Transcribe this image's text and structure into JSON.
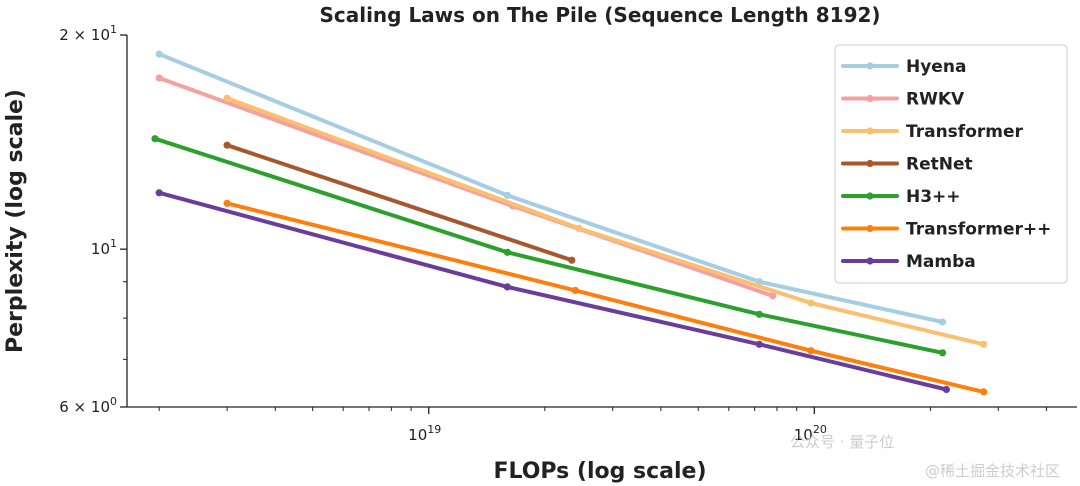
{
  "chart_data": {
    "type": "line",
    "title": "Scaling Laws on The Pile (Sequence Length 8192)",
    "xlabel": "FLOPs (log scale)",
    "ylabel": "Perplexity (log scale)",
    "xscale": "log",
    "yscale": "log",
    "xlim": [
      1.65e+18,
      4.8e+20
    ],
    "ylim": [
      6,
      20
    ],
    "x_ticks": [
      {
        "value": 1e+19,
        "base": "10",
        "exp": "19"
      },
      {
        "value": 1e+20,
        "base": "10",
        "exp": "20"
      }
    ],
    "y_ticks": [
      {
        "value": 6,
        "mant": "6 × 10",
        "exp": "0"
      },
      {
        "value": 10,
        "mant": "10",
        "exp": "1"
      },
      {
        "value": 20,
        "mant": "2 × 10",
        "exp": "1"
      }
    ],
    "grid": false,
    "legend_position": "top-right",
    "series": [
      {
        "name": "Hyena",
        "color": "#a6cee3",
        "points": [
          [
            2e+18,
            18.8
          ],
          [
            1.6e+19,
            11.9
          ],
          [
            7.2e+19,
            9.0
          ],
          [
            2.15e+20,
            7.9
          ]
        ]
      },
      {
        "name": "RWKV",
        "color": "#f4a0a0",
        "points": [
          [
            2e+18,
            17.4
          ],
          [
            1.65e+19,
            11.5
          ],
          [
            7.8e+19,
            8.6
          ]
        ]
      },
      {
        "name": "Transformer",
        "color": "#fbbf70",
        "points": [
          [
            3e+18,
            16.3
          ],
          [
            2.45e+19,
            10.7
          ],
          [
            9.8e+19,
            8.4
          ],
          [
            2.75e+20,
            7.35
          ]
        ]
      },
      {
        "name": "RetNet",
        "color": "#a6582b",
        "points": [
          [
            3e+18,
            14.0
          ],
          [
            2.35e+19,
            9.65
          ]
        ]
      },
      {
        "name": "H3++",
        "color": "#2ca02c",
        "points": [
          [
            1.95e+18,
            14.3
          ],
          [
            1.6e+19,
            9.9
          ],
          [
            7.2e+19,
            8.1
          ],
          [
            2.15e+20,
            7.15
          ]
        ]
      },
      {
        "name": "Transformer++",
        "color": "#ff7f0e",
        "points": [
          [
            3e+18,
            11.6
          ],
          [
            2.4e+19,
            8.75
          ],
          [
            9.8e+19,
            7.2
          ],
          [
            2.75e+20,
            6.3
          ]
        ]
      },
      {
        "name": "Mamba",
        "color": "#6a3d9a",
        "points": [
          [
            2e+18,
            12.0
          ],
          [
            1.6e+19,
            8.85
          ],
          [
            7.2e+19,
            7.35
          ],
          [
            2.2e+20,
            6.35
          ]
        ]
      }
    ]
  },
  "watermark": {
    "wechat": "公众号 · 量子位",
    "site": "@稀土掘金技术社区"
  }
}
